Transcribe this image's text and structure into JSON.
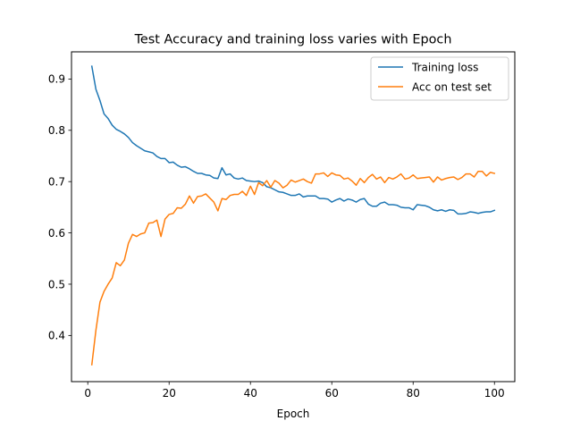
{
  "chart_data": {
    "type": "line",
    "title": "Test Accuracy and training loss varies with Epoch",
    "xlabel": "Epoch",
    "ylabel": "",
    "xlim": [
      -4,
      105
    ],
    "ylim": [
      0.31,
      0.953
    ],
    "xticks": [
      0,
      20,
      40,
      60,
      80,
      100
    ],
    "yticks": [
      0.4,
      0.5,
      0.6,
      0.7,
      0.8,
      0.9
    ],
    "grid": false,
    "legend": "top-right",
    "x": [
      1,
      2,
      3,
      4,
      5,
      6,
      7,
      8,
      9,
      10,
      11,
      12,
      13,
      14,
      15,
      16,
      17,
      18,
      19,
      20,
      21,
      22,
      23,
      24,
      25,
      26,
      27,
      28,
      29,
      30,
      31,
      32,
      33,
      34,
      35,
      36,
      37,
      38,
      39,
      40,
      41,
      42,
      43,
      44,
      45,
      46,
      47,
      48,
      49,
      50,
      51,
      52,
      53,
      54,
      55,
      56,
      57,
      58,
      59,
      60,
      61,
      62,
      63,
      64,
      65,
      66,
      67,
      68,
      69,
      70,
      71,
      72,
      73,
      74,
      75,
      76,
      77,
      78,
      79,
      80,
      81,
      82,
      83,
      84,
      85,
      86,
      87,
      88,
      89,
      90,
      91,
      92,
      93,
      94,
      95,
      96,
      97,
      98,
      99,
      100
    ],
    "series": [
      {
        "name": "Training loss",
        "color": "#1f77b4",
        "values": [
          0.925,
          0.88,
          0.858,
          0.832,
          0.823,
          0.81,
          0.802,
          0.798,
          0.793,
          0.786,
          0.776,
          0.77,
          0.765,
          0.76,
          0.758,
          0.756,
          0.749,
          0.745,
          0.745,
          0.737,
          0.738,
          0.732,
          0.728,
          0.729,
          0.725,
          0.72,
          0.716,
          0.716,
          0.713,
          0.712,
          0.707,
          0.706,
          0.727,
          0.713,
          0.715,
          0.707,
          0.705,
          0.707,
          0.702,
          0.701,
          0.7,
          0.701,
          0.698,
          0.69,
          0.688,
          0.684,
          0.68,
          0.679,
          0.676,
          0.673,
          0.673,
          0.676,
          0.67,
          0.672,
          0.672,
          0.672,
          0.667,
          0.667,
          0.666,
          0.66,
          0.664,
          0.667,
          0.662,
          0.666,
          0.664,
          0.66,
          0.665,
          0.667,
          0.656,
          0.652,
          0.652,
          0.658,
          0.66,
          0.655,
          0.655,
          0.654,
          0.65,
          0.649,
          0.649,
          0.645,
          0.655,
          0.654,
          0.653,
          0.65,
          0.645,
          0.643,
          0.645,
          0.642,
          0.645,
          0.644,
          0.637,
          0.637,
          0.638,
          0.641,
          0.64,
          0.638,
          0.64,
          0.641,
          0.641,
          0.644
        ]
      },
      {
        "name": "Acc on test set",
        "color": "#ff7f0e",
        "values": [
          0.343,
          0.41,
          0.465,
          0.486,
          0.5,
          0.512,
          0.542,
          0.536,
          0.547,
          0.58,
          0.597,
          0.593,
          0.598,
          0.6,
          0.619,
          0.62,
          0.625,
          0.593,
          0.627,
          0.636,
          0.638,
          0.649,
          0.648,
          0.656,
          0.672,
          0.658,
          0.671,
          0.672,
          0.676,
          0.668,
          0.66,
          0.643,
          0.667,
          0.665,
          0.673,
          0.675,
          0.675,
          0.681,
          0.673,
          0.691,
          0.675,
          0.698,
          0.692,
          0.702,
          0.689,
          0.702,
          0.697,
          0.688,
          0.693,
          0.703,
          0.699,
          0.702,
          0.705,
          0.7,
          0.697,
          0.715,
          0.715,
          0.717,
          0.71,
          0.717,
          0.713,
          0.712,
          0.705,
          0.707,
          0.701,
          0.693,
          0.706,
          0.698,
          0.708,
          0.714,
          0.705,
          0.709,
          0.698,
          0.708,
          0.705,
          0.709,
          0.715,
          0.705,
          0.707,
          0.713,
          0.706,
          0.707,
          0.708,
          0.709,
          0.699,
          0.709,
          0.703,
          0.706,
          0.708,
          0.709,
          0.704,
          0.708,
          0.715,
          0.715,
          0.709,
          0.72,
          0.72,
          0.711,
          0.718,
          0.716
        ]
      }
    ]
  }
}
